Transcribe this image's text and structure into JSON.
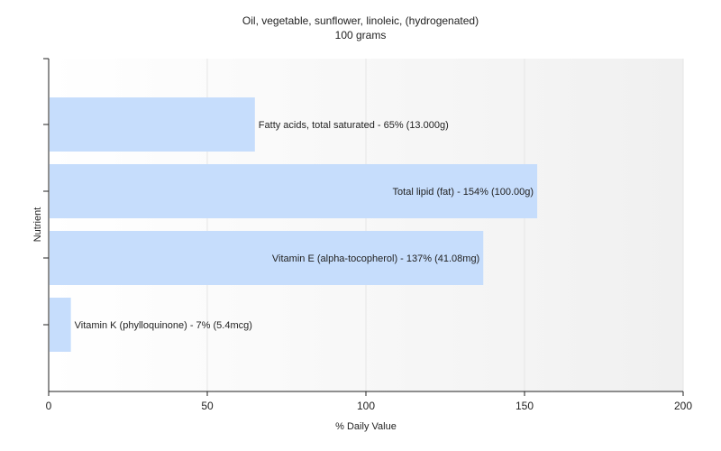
{
  "chart_data": {
    "type": "bar",
    "orientation": "horizontal",
    "title": "Oil, vegetable, sunflower, linoleic, (hydrogenated)",
    "subtitle": "100 grams",
    "xlabel": "% Daily Value",
    "ylabel": "Nutrient",
    "xlim": [
      0,
      200
    ],
    "xticks": [
      0,
      50,
      100,
      150,
      200
    ],
    "grid": true,
    "categories": [
      "Fatty acids, total saturated",
      "Total lipid (fat)",
      "Vitamin E (alpha-tocopherol)",
      "Vitamin K (phylloquinone)"
    ],
    "values": [
      65,
      154,
      137,
      7
    ],
    "labels": [
      "Fatty acids, total saturated - 65% (13.000g)",
      "Total lipid (fat) - 154% (100.00g)",
      "Vitamin E (alpha-tocopherol) - 137% (41.08mg)",
      "Vitamin K (phylloquinone) - 7% (5.4mcg)"
    ],
    "bar_color": "#c6ddfc",
    "grid_color": "#e6e6e6"
  }
}
